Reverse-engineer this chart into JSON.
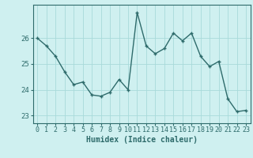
{
  "x": [
    0,
    1,
    2,
    3,
    4,
    5,
    6,
    7,
    8,
    9,
    10,
    11,
    12,
    13,
    14,
    15,
    16,
    17,
    18,
    19,
    20,
    21,
    22,
    23
  ],
  "y": [
    26.0,
    25.7,
    25.3,
    24.7,
    24.2,
    24.3,
    23.8,
    23.75,
    23.9,
    24.4,
    24.0,
    27.0,
    25.7,
    25.4,
    25.6,
    26.2,
    25.9,
    26.2,
    25.3,
    24.9,
    25.1,
    23.65,
    23.15,
    23.2
  ],
  "xlabel": "Humidex (Indice chaleur)",
  "ylim": [
    22.7,
    27.3
  ],
  "xlim": [
    -0.5,
    23.5
  ],
  "yticks": [
    23,
    24,
    25,
    26
  ],
  "xticks": [
    0,
    1,
    2,
    3,
    4,
    5,
    6,
    7,
    8,
    9,
    10,
    11,
    12,
    13,
    14,
    15,
    16,
    17,
    18,
    19,
    20,
    21,
    22,
    23
  ],
  "line_color": "#2e6b6b",
  "marker_color": "#2e6b6b",
  "bg_color": "#cff0f0",
  "grid_color": "#a8dada",
  "axis_color": "#2e6b6b",
  "tick_fontsize": 6.0,
  "xlabel_fontsize": 7.0,
  "linewidth": 1.0,
  "markersize": 3.5
}
